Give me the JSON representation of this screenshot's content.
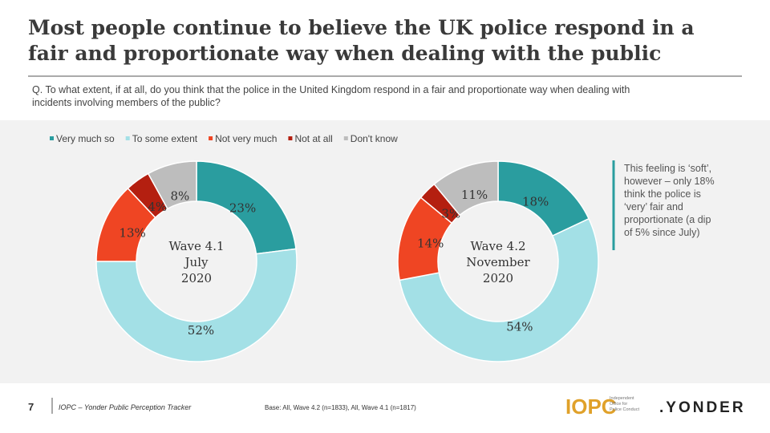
{
  "page": {
    "title": [
      "Most people continue to believe the UK police respond in a",
      "fair and proportionate way when dealing with the public"
    ],
    "question": [
      "Q. To what extent, if at all, do you think that the police in the United Kingdom respond in a fair and proportionate way when dealing with",
      "incidents involving members of the public?"
    ],
    "note": [
      "This feeling is ‘soft’,",
      "however – only 18%",
      "think the police is",
      "‘very’ fair and",
      "proportionate (a dip",
      "of 5% since July)"
    ],
    "page_number": "7",
    "source": "IOPC – Yonder Public Perception Tracker",
    "base": "Base: All, Wave 4.2 (n=1833), All, Wave 4.1 (n=1817)",
    "logo_iopc": "IOPC",
    "logo_iopc_sub": [
      "Independent",
      "Office for",
      "Police Conduct"
    ],
    "logo_yonder": ".YONDER"
  },
  "chart_data": [
    {
      "type": "pie",
      "center_label": [
        "Wave 4.1",
        "July",
        "2020"
      ],
      "categories": [
        "Very much so",
        "To some extent",
        "Not very much",
        "Not at all",
        "Don't know"
      ],
      "colors": [
        "#2a9d9f",
        "#a3e0e6",
        "#ef4523",
        "#b41f10",
        "#bdbdbd"
      ],
      "values": [
        23,
        52,
        13,
        4,
        8
      ],
      "value_labels": [
        "23%",
        "52%",
        "13%",
        "4%",
        "8%"
      ]
    },
    {
      "type": "pie",
      "center_label": [
        "Wave 4.2",
        "November",
        "2020"
      ],
      "categories": [
        "Very much so",
        "To some extent",
        "Not very much",
        "Not at all",
        "Don't know"
      ],
      "colors": [
        "#2a9d9f",
        "#a3e0e6",
        "#ef4523",
        "#b41f10",
        "#bdbdbd"
      ],
      "values": [
        18,
        54,
        14,
        3,
        11
      ],
      "value_labels": [
        "18%",
        "54%",
        "14%",
        "3%",
        "11%"
      ]
    }
  ]
}
